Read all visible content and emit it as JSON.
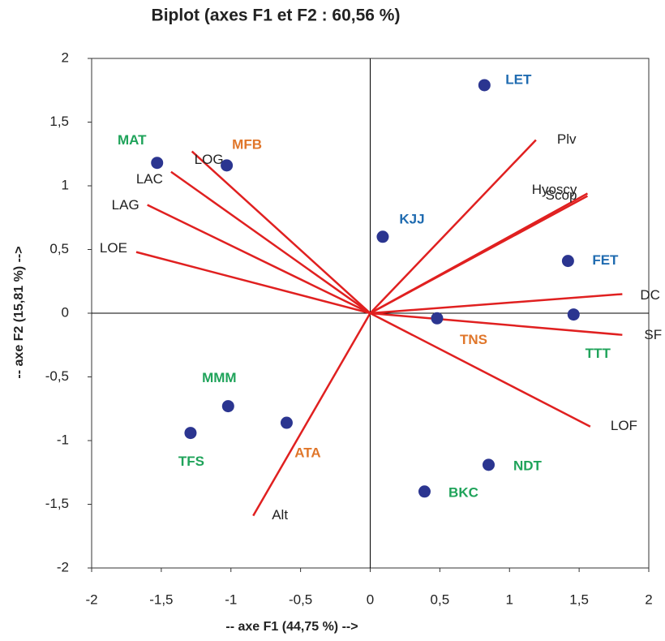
{
  "chart_data": {
    "type": "biplot",
    "title": "Biplot (axes F1 et F2 : 60,56 %)",
    "x_label": "-- axe F1 (44,75 %) -->",
    "y_label": "-- axe F2 (15,81 %) -->",
    "xlim": [
      -2,
      2
    ],
    "ylim": [
      -2,
      2
    ],
    "xticks": [
      -2,
      {
        "value": -1.5,
        "label": "-1,5"
      },
      -1,
      {
        "value": -0.5,
        "label": "-0,5"
      },
      0,
      {
        "value": 0.5,
        "label": "0,5"
      },
      1,
      {
        "value": 1.5,
        "label": "1,5"
      },
      2
    ],
    "yticks": [
      -2,
      {
        "value": -1.5,
        "label": "-1,5"
      },
      -1,
      {
        "value": -0.5,
        "label": "-0,5"
      },
      0,
      {
        "value": 0.5,
        "label": "0,5"
      },
      1,
      {
        "value": 1.5,
        "label": "1,5"
      },
      2
    ],
    "points": {
      "color": "#2b3590",
      "labels": [
        "LET",
        "KJJ",
        "FET",
        "MAT",
        "MFB",
        "TNS",
        "TTT",
        "MMM",
        "TFS",
        "ATA",
        "NDT",
        "BKC"
      ],
      "label_colors": [
        "#1f6bb0",
        "#1f6bb0",
        "#1f6bb0",
        "#1fa35a",
        "#e0762a",
        "#e0762a",
        "#1fa35a",
        "#1fa35a",
        "#1fa35a",
        "#e0762a",
        "#1fa35a",
        "#1fa35a"
      ],
      "x": [
        0.82,
        0.09,
        1.42,
        -1.53,
        -1.03,
        0.48,
        1.46,
        -1.02,
        -1.29,
        -0.6,
        0.85,
        0.39
      ],
      "y": [
        1.79,
        0.6,
        0.41,
        1.18,
        1.16,
        -0.04,
        -0.01,
        -0.73,
        -0.94,
        -0.86,
        -1.19,
        -1.4
      ]
    },
    "vectors": {
      "color": "#e02020",
      "labels": [
        "Plv",
        "Hyoscy",
        "Scop",
        "DC",
        "SF",
        "LOF",
        "Alt",
        "LOE",
        "LAG",
        "LAC",
        "LOG"
      ],
      "x": [
        1.19,
        1.56,
        1.56,
        1.81,
        1.81,
        1.58,
        -0.84,
        -1.68,
        -1.6,
        -1.43,
        -1.28
      ],
      "y": [
        1.36,
        0.94,
        0.92,
        0.15,
        -0.17,
        -0.89,
        -1.59,
        0.48,
        0.85,
        1.11,
        1.27
      ]
    }
  }
}
